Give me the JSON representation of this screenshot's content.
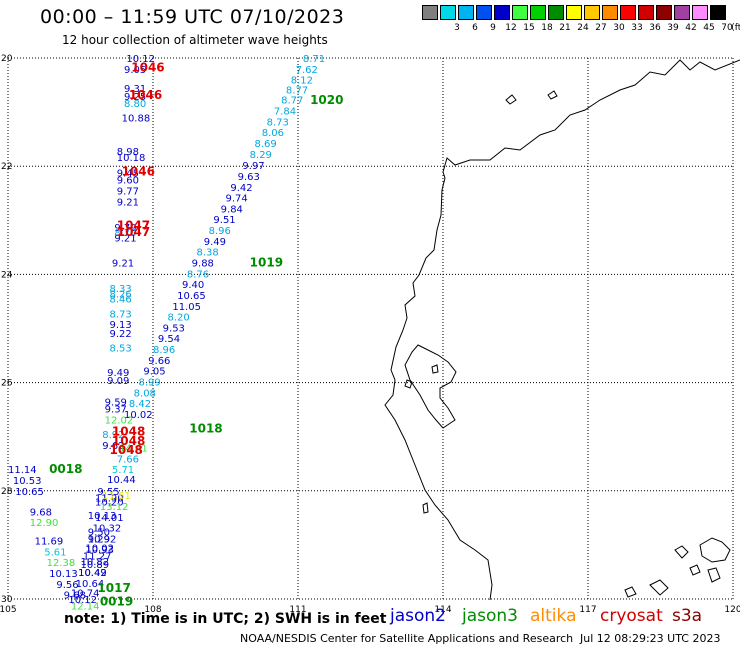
{
  "title": "00:00 – 11:59 UTC 07/10/2023",
  "subtitle": "12 hour collection of altimeter wave heights",
  "legend": {
    "unit": "(ft)",
    "bins": [
      {
        "label": "",
        "color": "#7f7f7f"
      },
      {
        "label": "3",
        "color": "#00d8e8"
      },
      {
        "label": "6",
        "color": "#00b4f0"
      },
      {
        "label": "9",
        "color": "#0050f0"
      },
      {
        "label": "12",
        "color": "#0000c8"
      },
      {
        "label": "15",
        "color": "#40ff40"
      },
      {
        "label": "18",
        "color": "#00d000"
      },
      {
        "label": "21",
        "color": "#008c00"
      },
      {
        "label": "24",
        "color": "#ffff00"
      },
      {
        "label": "27",
        "color": "#ffc800"
      },
      {
        "label": "30",
        "color": "#ff8c00"
      },
      {
        "label": "33",
        "color": "#ff0000"
      },
      {
        "label": "36",
        "color": "#d00000"
      },
      {
        "label": "39",
        "color": "#8c0000"
      },
      {
        "label": "42",
        "color": "#a040a0"
      },
      {
        "label": "45",
        "color": "#ff8cff"
      },
      {
        "label": "70",
        "color": "#000000"
      }
    ]
  },
  "axes": {
    "lon_ticks": [
      "105",
      "108",
      "111",
      "114",
      "117",
      "120"
    ],
    "lat_ticks": [
      "20",
      "22",
      "24",
      "26",
      "28",
      "30"
    ]
  },
  "note": "note: 1) Time is in UTC; 2) SWH is in feet",
  "satellites": [
    {
      "name": "jason2",
      "color": "#0000c8"
    },
    {
      "name": "jason3",
      "color": "#008c00"
    },
    {
      "name": "altika",
      "color": "#ff8c00"
    },
    {
      "name": "cryosat",
      "color": "#d00000"
    },
    {
      "name": "s3a",
      "color": "#8c0000"
    }
  ],
  "credit": "NOAA/NESDIS Center for Satellite Applications and Research",
  "stamp": "Jul 12 08:29:23 UTC 2023",
  "colors": {
    "light_blue": "#00a8e0",
    "cyan": "#00c8e0",
    "blue": "#0000c8",
    "light_green": "#40e040",
    "green": "#008c00",
    "yellow": "#e8e800",
    "red": "#e00000"
  },
  "chart_data": {
    "type": "scatter",
    "xlim": [
      105,
      120
    ],
    "ylim": [
      20,
      30
    ],
    "y_direction": "down",
    "track_b": [
      {
        "lon": 111.1,
        "lat": 20.0,
        "v": "8.71",
        "c": "light_blue"
      },
      {
        "lon": 110.95,
        "lat": 20.2,
        "v": "7.62",
        "c": "light_blue"
      },
      {
        "lon": 110.85,
        "lat": 20.4,
        "v": "8.12",
        "c": "light_blue"
      },
      {
        "lon": 110.75,
        "lat": 20.58,
        "v": "8.77",
        "c": "light_blue"
      },
      {
        "lon": 110.65,
        "lat": 20.77,
        "v": "8.77",
        "c": "light_blue"
      },
      {
        "lon": 110.5,
        "lat": 20.97,
        "v": "7.84",
        "c": "light_blue"
      },
      {
        "lon": 110.35,
        "lat": 21.17,
        "v": "8.73",
        "c": "light_blue"
      },
      {
        "lon": 110.25,
        "lat": 21.37,
        "v": "8.06",
        "c": "light_blue"
      },
      {
        "lon": 110.1,
        "lat": 21.57,
        "v": "8.69",
        "c": "light_blue"
      },
      {
        "lon": 110.0,
        "lat": 21.77,
        "v": "8.29",
        "c": "light_blue"
      },
      {
        "lon": 109.85,
        "lat": 21.98,
        "v": "9.97",
        "c": "blue"
      },
      {
        "lon": 109.75,
        "lat": 22.18,
        "v": "9.63",
        "c": "blue"
      },
      {
        "lon": 109.6,
        "lat": 22.38,
        "v": "9.42",
        "c": "blue"
      },
      {
        "lon": 109.5,
        "lat": 22.58,
        "v": "9.74",
        "c": "blue"
      },
      {
        "lon": 109.4,
        "lat": 22.78,
        "v": "9.84",
        "c": "blue"
      },
      {
        "lon": 109.25,
        "lat": 22.98,
        "v": "9.51",
        "c": "blue"
      },
      {
        "lon": 109.15,
        "lat": 23.18,
        "v": "8.96",
        "c": "light_blue"
      },
      {
        "lon": 109.05,
        "lat": 23.38,
        "v": "9.49",
        "c": "blue"
      },
      {
        "lon": 108.9,
        "lat": 23.58,
        "v": "8.38",
        "c": "light_blue"
      },
      {
        "lon": 108.8,
        "lat": 23.78,
        "v": "9.88",
        "c": "blue"
      },
      {
        "lon": 108.7,
        "lat": 23.98,
        "v": "8.76",
        "c": "light_blue"
      },
      {
        "lon": 108.6,
        "lat": 24.18,
        "v": "9.40",
        "c": "blue"
      },
      {
        "lon": 108.5,
        "lat": 24.38,
        "v": "10.65",
        "c": "blue"
      },
      {
        "lon": 108.4,
        "lat": 24.58,
        "v": "11.05",
        "c": "blue"
      },
      {
        "lon": 108.3,
        "lat": 24.78,
        "v": "8.20",
        "c": "light_blue"
      },
      {
        "lon": 108.2,
        "lat": 24.98,
        "v": "9.53",
        "c": "blue"
      },
      {
        "lon": 108.1,
        "lat": 25.18,
        "v": "9.54",
        "c": "blue"
      },
      {
        "lon": 108.0,
        "lat": 25.38,
        "v": "8.96",
        "c": "light_blue"
      },
      {
        "lon": 107.9,
        "lat": 25.58,
        "v": "9.66",
        "c": "blue"
      },
      {
        "lon": 107.8,
        "lat": 25.78,
        "v": "9.05",
        "c": "blue"
      },
      {
        "lon": 107.7,
        "lat": 25.98,
        "v": "8.99",
        "c": "light_blue"
      },
      {
        "lon": 107.6,
        "lat": 26.18,
        "v": "8.08",
        "c": "light_blue"
      },
      {
        "lon": 107.5,
        "lat": 26.38,
        "v": "8.42",
        "c": "light_blue"
      },
      {
        "lon": 107.4,
        "lat": 26.58,
        "v": "10.02",
        "c": "blue"
      },
      {
        "lon": 107.3,
        "lat": 27.2,
        "v": "14.41",
        "c": "light_green"
      },
      {
        "lon": 107.25,
        "lat": 27.4,
        "v": "7.66",
        "c": "light_blue"
      },
      {
        "lon": 107.15,
        "lat": 27.6,
        "v": "5.71",
        "c": "cyan"
      },
      {
        "lon": 107.05,
        "lat": 27.78,
        "v": "10.44",
        "c": "blue"
      },
      {
        "lon": 106.95,
        "lat": 28.08,
        "v": "11.61",
        "c": "yellow"
      },
      {
        "lon": 106.9,
        "lat": 28.28,
        "v": "13.12",
        "c": "light_green"
      },
      {
        "lon": 106.8,
        "lat": 28.48,
        "v": "14.01",
        "c": "blue"
      },
      {
        "lon": 106.75,
        "lat": 28.68,
        "v": "10.32",
        "c": "blue"
      },
      {
        "lon": 106.65,
        "lat": 28.88,
        "v": "10.92",
        "c": "blue"
      },
      {
        "lon": 106.6,
        "lat": 29.08,
        "v": "10.93",
        "c": "blue"
      },
      {
        "lon": 106.5,
        "lat": 29.3,
        "v": "10.82",
        "c": "blue"
      },
      {
        "lon": 106.45,
        "lat": 29.5,
        "v": "10.49",
        "c": "blue"
      },
      {
        "lon": 106.4,
        "lat": 29.7,
        "v": "10.64",
        "c": "blue"
      },
      {
        "lon": 106.3,
        "lat": 29.88,
        "v": "10.74",
        "c": "blue"
      },
      {
        "lon": 106.25,
        "lat": 30.0,
        "v": "10.12",
        "c": "blue"
      }
    ],
    "track_a": [
      {
        "lon": 107.45,
        "lat": 20.0,
        "v": "10.12",
        "c": "blue"
      },
      {
        "lon": 107.4,
        "lat": 20.2,
        "v": "9.05",
        "c": "blue"
      },
      {
        "lon": 107.4,
        "lat": 20.55,
        "v": "9.31",
        "c": "blue"
      },
      {
        "lon": 107.4,
        "lat": 20.7,
        "v": "9.25",
        "c": "blue"
      },
      {
        "lon": 107.4,
        "lat": 20.83,
        "v": "8.80",
        "c": "light_blue"
      },
      {
        "lon": 107.35,
        "lat": 21.1,
        "v": "10.88",
        "c": "blue"
      },
      {
        "lon": 107.25,
        "lat": 21.72,
        "v": "8.98",
        "c": "blue"
      },
      {
        "lon": 107.25,
        "lat": 21.83,
        "v": "10.18",
        "c": "blue"
      },
      {
        "lon": 107.25,
        "lat": 22.12,
        "v": "9.45",
        "c": "blue"
      },
      {
        "lon": 107.25,
        "lat": 22.25,
        "v": "9.60",
        "c": "blue"
      },
      {
        "lon": 107.25,
        "lat": 22.45,
        "v": "9.77",
        "c": "blue"
      },
      {
        "lon": 107.25,
        "lat": 22.65,
        "v": "9.21",
        "c": "blue"
      },
      {
        "lon": 107.2,
        "lat": 23.12,
        "v": "9.79",
        "c": "blue"
      },
      {
        "lon": 107.2,
        "lat": 23.22,
        "v": "8.70",
        "c": "light_blue"
      },
      {
        "lon": 107.2,
        "lat": 23.32,
        "v": "9.21",
        "c": "blue"
      },
      {
        "lon": 107.15,
        "lat": 23.78,
        "v": "9.21",
        "c": "blue"
      },
      {
        "lon": 107.1,
        "lat": 24.25,
        "v": "8.33",
        "c": "light_blue"
      },
      {
        "lon": 107.1,
        "lat": 24.35,
        "v": "8.26",
        "c": "light_blue"
      },
      {
        "lon": 107.1,
        "lat": 24.45,
        "v": "8.46",
        "c": "light_blue"
      },
      {
        "lon": 107.1,
        "lat": 24.72,
        "v": "8.73",
        "c": "light_blue"
      },
      {
        "lon": 107.1,
        "lat": 24.92,
        "v": "9.13",
        "c": "blue"
      },
      {
        "lon": 107.1,
        "lat": 25.08,
        "v": "9.22",
        "c": "blue"
      },
      {
        "lon": 107.1,
        "lat": 25.35,
        "v": "8.53",
        "c": "light_blue"
      },
      {
        "lon": 107.05,
        "lat": 25.8,
        "v": "9.49",
        "c": "blue"
      },
      {
        "lon": 107.05,
        "lat": 25.95,
        "v": "9.09",
        "c": "blue"
      },
      {
        "lon": 107.0,
        "lat": 26.35,
        "v": "9.59",
        "c": "blue"
      },
      {
        "lon": 107.0,
        "lat": 26.48,
        "v": "9.37",
        "c": "blue"
      },
      {
        "lon": 107.0,
        "lat": 26.68,
        "v": "12.02",
        "c": "light_green"
      },
      {
        "lon": 106.95,
        "lat": 26.95,
        "v": "8.92",
        "c": "light_blue"
      },
      {
        "lon": 106.95,
        "lat": 27.15,
        "v": "9.62",
        "c": "blue"
      },
      {
        "lon": 105.0,
        "lat": 27.6,
        "v": "11.14",
        "c": "blue"
      },
      {
        "lon": 105.1,
        "lat": 27.8,
        "v": "10.53",
        "c": "blue"
      },
      {
        "lon": 105.15,
        "lat": 28.0,
        "v": "10.65",
        "c": "blue"
      },
      {
        "lon": 105.45,
        "lat": 28.38,
        "v": "9.68",
        "c": "blue"
      },
      {
        "lon": 105.45,
        "lat": 28.58,
        "v": "12.90",
        "c": "light_green"
      },
      {
        "lon": 105.55,
        "lat": 28.92,
        "v": "11.69",
        "c": "blue"
      },
      {
        "lon": 105.75,
        "lat": 29.12,
        "v": "5.61",
        "c": "cyan"
      },
      {
        "lon": 105.8,
        "lat": 29.32,
        "v": "12.38",
        "c": "light_green"
      },
      {
        "lon": 105.85,
        "lat": 29.52,
        "v": "10.13",
        "c": "blue"
      },
      {
        "lon": 106.0,
        "lat": 29.72,
        "v": "9.56",
        "c": "blue"
      },
      {
        "lon": 106.15,
        "lat": 29.92,
        "v": "9.68",
        "c": "blue"
      },
      {
        "lon": 106.3,
        "lat": 30.12,
        "v": "12.14",
        "c": "light_green"
      },
      {
        "lon": 106.35,
        "lat": 30.3,
        "v": "9.84",
        "c": "blue"
      },
      {
        "lon": 106.2,
        "lat": 30.48,
        "v": "9.84",
        "c": "blue"
      },
      {
        "lon": 106.2,
        "lat": 30.62,
        "v": "9.31",
        "c": "blue"
      },
      {
        "lon": 106.25,
        "lat": 30.76,
        "v": "9.30",
        "c": "blue"
      },
      {
        "lon": 106.5,
        "lat": 30.9,
        "v": "10.06",
        "c": "blue"
      },
      {
        "lon": 106.5,
        "lat": 31.05,
        "v": "9.80",
        "c": "blue"
      },
      {
        "lon": 106.85,
        "lat": 28.0,
        "v": "9.55",
        "c": "blue"
      },
      {
        "lon": 106.8,
        "lat": 28.12,
        "v": "11.90",
        "c": "blue"
      },
      {
        "lon": 106.8,
        "lat": 28.2,
        "v": "10.20",
        "c": "blue"
      },
      {
        "lon": 106.65,
        "lat": 28.45,
        "v": "10.13",
        "c": "blue"
      },
      {
        "lon": 106.65,
        "lat": 28.75,
        "v": "9.50",
        "c": "blue"
      },
      {
        "lon": 106.65,
        "lat": 28.88,
        "v": "9.29",
        "c": "blue"
      },
      {
        "lon": 106.6,
        "lat": 29.05,
        "v": "10.02",
        "c": "blue"
      },
      {
        "lon": 106.55,
        "lat": 29.2,
        "v": "11.27",
        "c": "blue"
      },
      {
        "lon": 106.5,
        "lat": 29.35,
        "v": "10.89",
        "c": "blue"
      },
      {
        "lon": 106.45,
        "lat": 29.5,
        "v": "10.42",
        "c": "blue"
      }
    ],
    "time_labels": [
      {
        "lon": 107.55,
        "lat": 20.18,
        "v": "1046",
        "c": "red"
      },
      {
        "lon": 107.5,
        "lat": 20.68,
        "v": "1046",
        "c": "red"
      },
      {
        "lon": 107.35,
        "lat": 22.1,
        "v": "1046",
        "c": "red"
      },
      {
        "lon": 107.25,
        "lat": 23.1,
        "v": "1047",
        "c": "red"
      },
      {
        "lon": 107.25,
        "lat": 23.22,
        "v": "1047",
        "c": "red"
      },
      {
        "lon": 107.15,
        "lat": 26.9,
        "v": "1048",
        "c": "red"
      },
      {
        "lon": 107.15,
        "lat": 27.08,
        "v": "1048",
        "c": "red"
      },
      {
        "lon": 107.1,
        "lat": 27.25,
        "v": "1048",
        "c": "red"
      },
      {
        "lon": 111.25,
        "lat": 20.78,
        "v": "1020",
        "c": "green"
      },
      {
        "lon": 110.0,
        "lat": 23.78,
        "v": "1019",
        "c": "green"
      },
      {
        "lon": 108.75,
        "lat": 26.85,
        "v": "1018",
        "c": "green"
      },
      {
        "lon": 105.85,
        "lat": 27.6,
        "v": "0018",
        "c": "green"
      },
      {
        "lon": 106.85,
        "lat": 29.8,
        "v": "1017",
        "c": "green"
      },
      {
        "lon": 106.9,
        "lat": 30.05,
        "v": "0019",
        "c": "green"
      },
      {
        "lon": 106.75,
        "lat": 30.15,
        "v": "1016",
        "c": "green"
      }
    ]
  }
}
